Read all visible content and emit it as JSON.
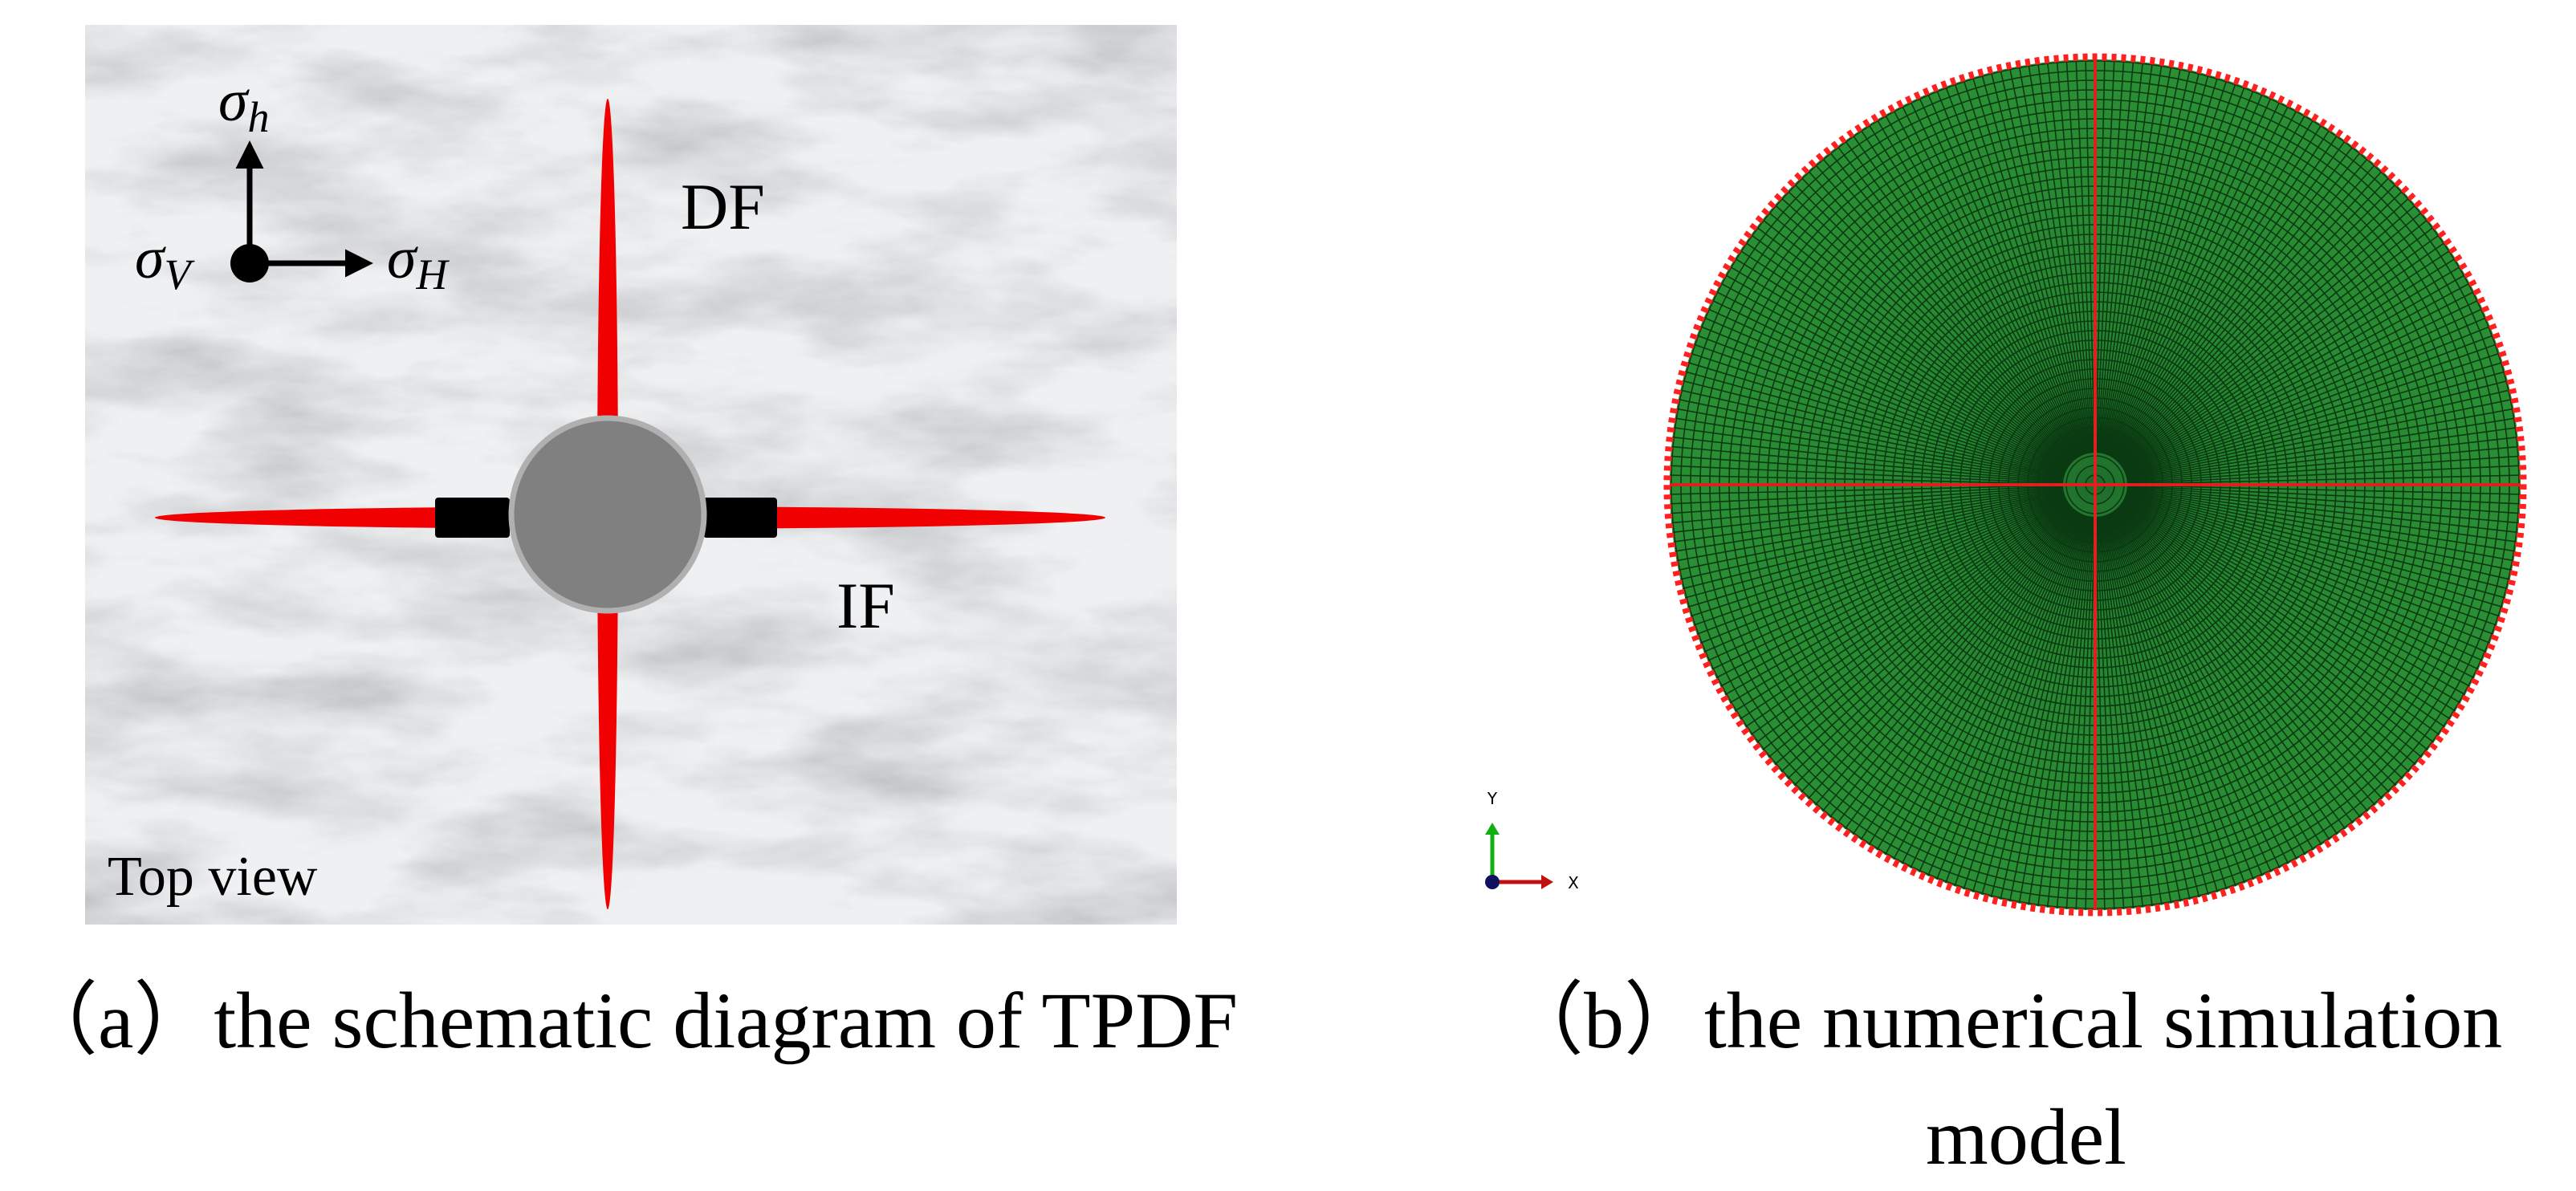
{
  "panel_a": {
    "stress_labels": {
      "sigma_h": {
        "base": "σ",
        "sub": "h"
      },
      "sigma_V": {
        "base": "σ",
        "sub": "V"
      },
      "sigma_H": {
        "base": "σ",
        "sub": "H"
      }
    },
    "labels": {
      "df": "DF",
      "if": "IF",
      "view": "Top view"
    },
    "caption": "（a）the schematic diagram of TPDF"
  },
  "panel_b": {
    "axes": {
      "y": "Y",
      "x": "X"
    },
    "caption_line1": "（b）the numerical simulation",
    "caption_line2": "model"
  }
}
